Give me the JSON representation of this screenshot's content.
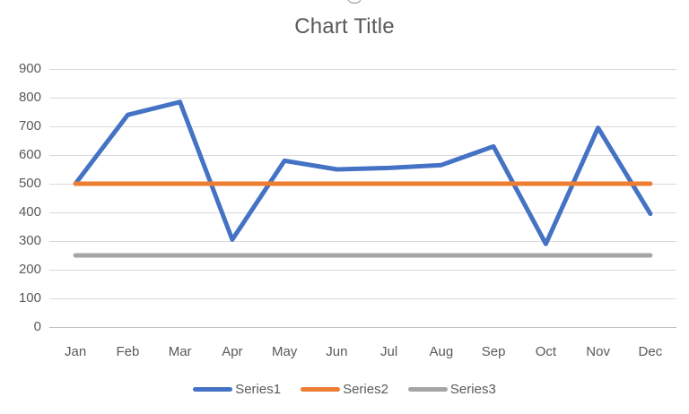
{
  "chart_data": {
    "type": "line",
    "title": "Chart Title",
    "categories": [
      "Jan",
      "Feb",
      "Mar",
      "Apr",
      "May",
      "Jun",
      "Jul",
      "Aug",
      "Sep",
      "Oct",
      "Nov",
      "Dec"
    ],
    "series": [
      {
        "name": "Series1",
        "color": "#4472C4",
        "values": [
          500,
          740,
          785,
          305,
          580,
          550,
          555,
          565,
          630,
          290,
          695,
          395
        ]
      },
      {
        "name": "Series2",
        "color": "#ED7D31",
        "values": [
          500,
          500,
          500,
          500,
          500,
          500,
          500,
          500,
          500,
          500,
          500,
          500
        ]
      },
      {
        "name": "Series3",
        "color": "#A5A5A5",
        "values": [
          250,
          250,
          250,
          250,
          250,
          250,
          250,
          250,
          250,
          250,
          250,
          250
        ]
      }
    ],
    "xlabel": "",
    "ylabel": "",
    "ylim": [
      0,
      900
    ],
    "ytick_step": 100,
    "grid": true,
    "legend_position": "bottom"
  },
  "styles": {
    "title_color": "#595959",
    "tick_label_color": "#595959",
    "legend_label_color": "#595959",
    "gridline_color": "#D9D9D9",
    "axis_line_color": "#BFBFBF",
    "background": "#FFFFFF"
  }
}
